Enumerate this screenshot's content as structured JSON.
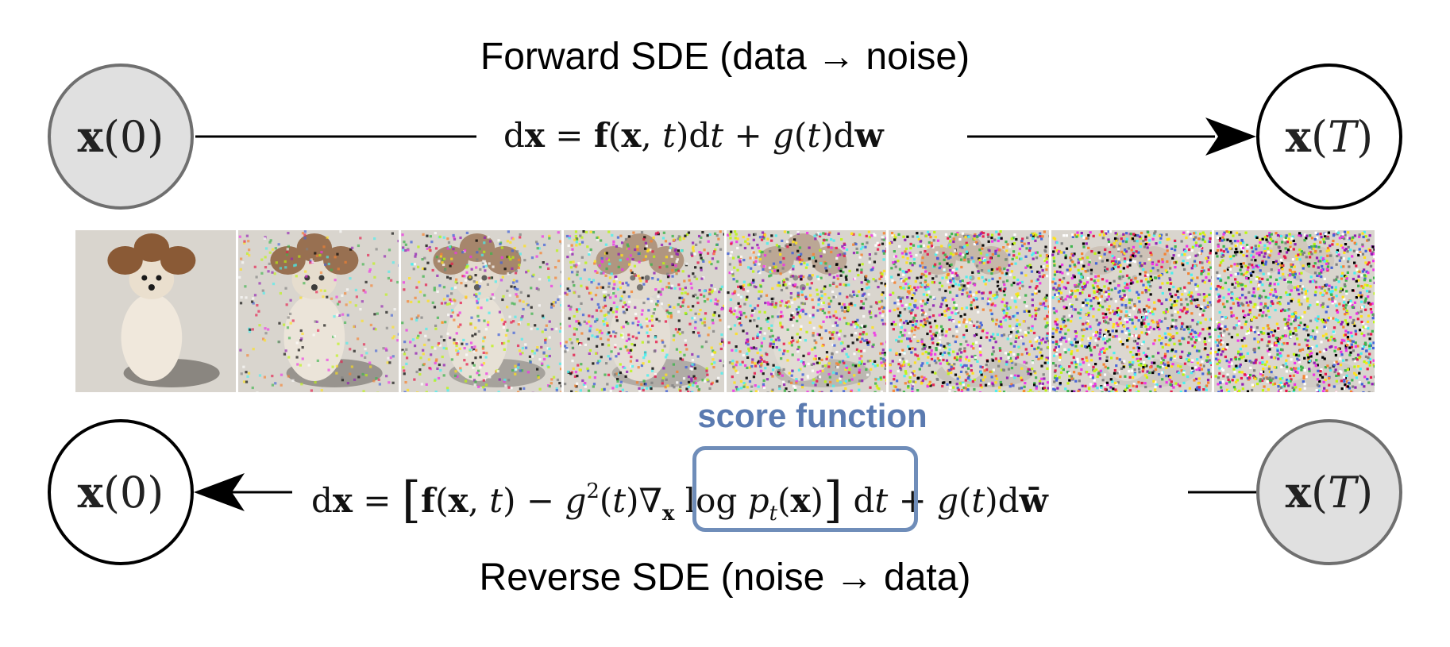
{
  "forward": {
    "title": "Forward SDE (data → noise)",
    "equation": {
      "lhs": "dx",
      "rhs": "= f(x, t)dt + g(t)dw"
    }
  },
  "reverse": {
    "title": "Reverse SDE (noise → data)",
    "equation": {
      "lhs": "dx",
      "rhs": "= [f(x, t) − g²(t)∇ₓ log pₜ(x)] dt + g(t)dw̄"
    }
  },
  "nodes": {
    "start": "x(0)",
    "end": "x(T)"
  },
  "score_label": "score function",
  "noise_sequence": {
    "frames": 8,
    "noise_levels": [
      0.0,
      0.2,
      0.4,
      0.55,
      0.7,
      0.85,
      0.95,
      1.0
    ]
  },
  "colors": {
    "node_filled": "#e0e0e0",
    "node_border_filled": "#6f6f6f",
    "score_accent": "#6f8db9",
    "score_text": "#5a7ab0"
  }
}
